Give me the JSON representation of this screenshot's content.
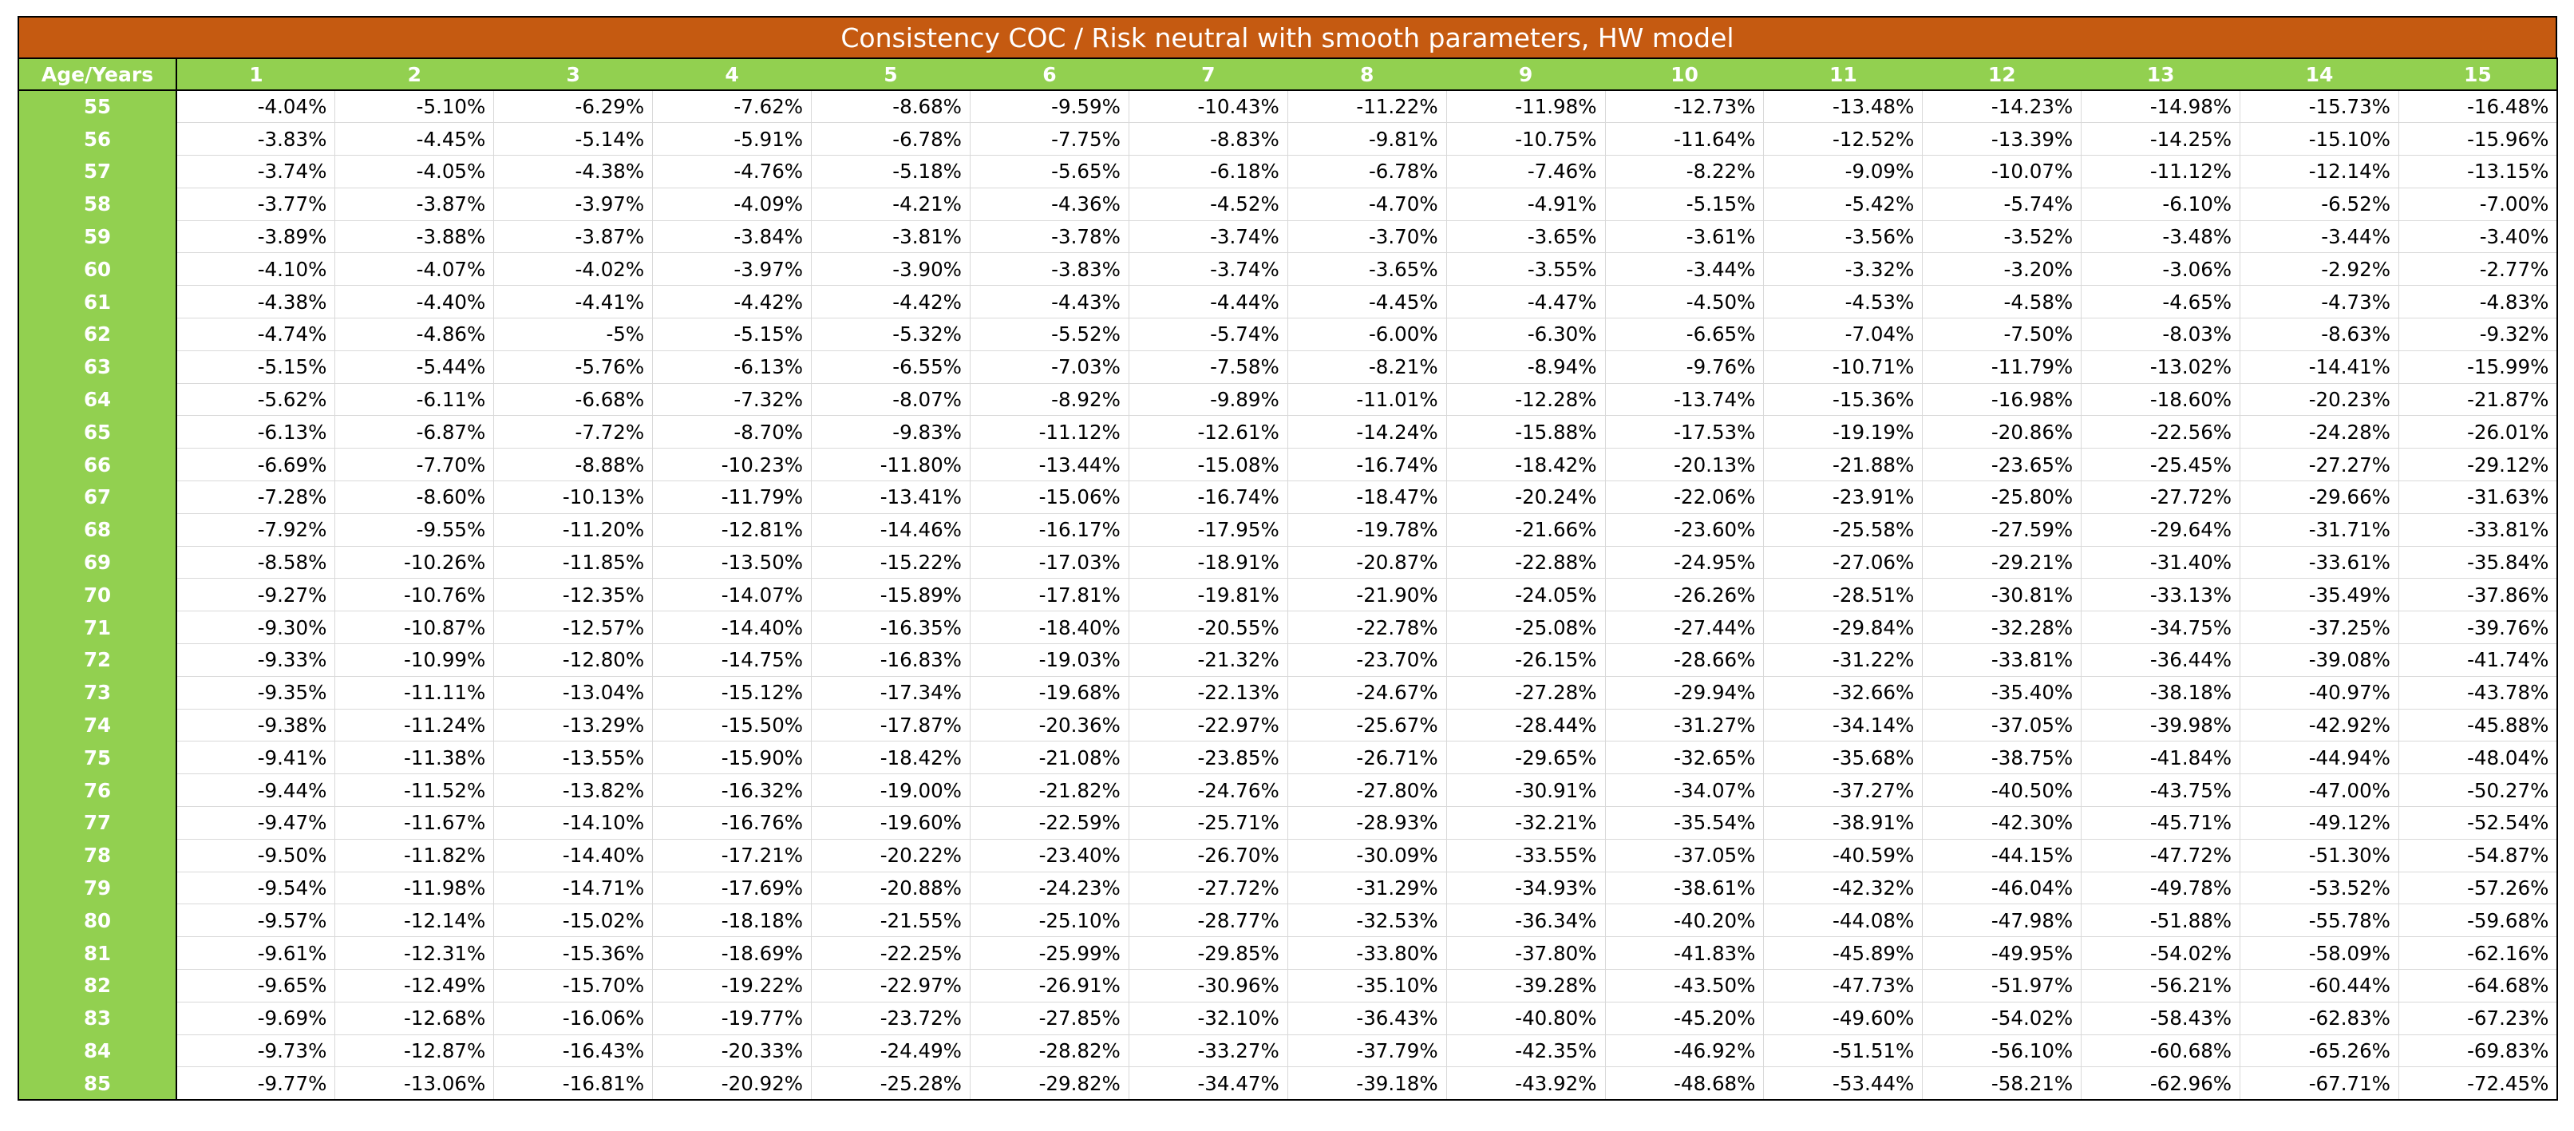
{
  "title": "Consistency COC / Risk neutral with smooth parameters, HW model",
  "corner_label": "Age/Years",
  "colors": {
    "title_bg": "#c55a11",
    "header_bg": "#92d050",
    "header_text": "#ffffff"
  },
  "years": [
    "1",
    "2",
    "3",
    "4",
    "5",
    "6",
    "7",
    "8",
    "9",
    "10",
    "11",
    "12",
    "13",
    "14",
    "15"
  ],
  "rows": [
    {
      "age": "55",
      "values": [
        "-4.04%",
        "-5.10%",
        "-6.29%",
        "-7.62%",
        "-8.68%",
        "-9.59%",
        "-10.43%",
        "-11.22%",
        "-11.98%",
        "-12.73%",
        "-13.48%",
        "-14.23%",
        "-14.98%",
        "-15.73%",
        "-16.48%"
      ]
    },
    {
      "age": "56",
      "values": [
        "-3.83%",
        "-4.45%",
        "-5.14%",
        "-5.91%",
        "-6.78%",
        "-7.75%",
        "-8.83%",
        "-9.81%",
        "-10.75%",
        "-11.64%",
        "-12.52%",
        "-13.39%",
        "-14.25%",
        "-15.10%",
        "-15.96%"
      ]
    },
    {
      "age": "57",
      "values": [
        "-3.74%",
        "-4.05%",
        "-4.38%",
        "-4.76%",
        "-5.18%",
        "-5.65%",
        "-6.18%",
        "-6.78%",
        "-7.46%",
        "-8.22%",
        "-9.09%",
        "-10.07%",
        "-11.12%",
        "-12.14%",
        "-13.15%"
      ]
    },
    {
      "age": "58",
      "values": [
        "-3.77%",
        "-3.87%",
        "-3.97%",
        "-4.09%",
        "-4.21%",
        "-4.36%",
        "-4.52%",
        "-4.70%",
        "-4.91%",
        "-5.15%",
        "-5.42%",
        "-5.74%",
        "-6.10%",
        "-6.52%",
        "-7.00%"
      ]
    },
    {
      "age": "59",
      "values": [
        "-3.89%",
        "-3.88%",
        "-3.87%",
        "-3.84%",
        "-3.81%",
        "-3.78%",
        "-3.74%",
        "-3.70%",
        "-3.65%",
        "-3.61%",
        "-3.56%",
        "-3.52%",
        "-3.48%",
        "-3.44%",
        "-3.40%"
      ]
    },
    {
      "age": "60",
      "values": [
        "-4.10%",
        "-4.07%",
        "-4.02%",
        "-3.97%",
        "-3.90%",
        "-3.83%",
        "-3.74%",
        "-3.65%",
        "-3.55%",
        "-3.44%",
        "-3.32%",
        "-3.20%",
        "-3.06%",
        "-2.92%",
        "-2.77%"
      ]
    },
    {
      "age": "61",
      "values": [
        "-4.38%",
        "-4.40%",
        "-4.41%",
        "-4.42%",
        "-4.42%",
        "-4.43%",
        "-4.44%",
        "-4.45%",
        "-4.47%",
        "-4.50%",
        "-4.53%",
        "-4.58%",
        "-4.65%",
        "-4.73%",
        "-4.83%"
      ]
    },
    {
      "age": "62",
      "values": [
        "-4.74%",
        "-4.86%",
        "-5%",
        "-5.15%",
        "-5.32%",
        "-5.52%",
        "-5.74%",
        "-6.00%",
        "-6.30%",
        "-6.65%",
        "-7.04%",
        "-7.50%",
        "-8.03%",
        "-8.63%",
        "-9.32%"
      ]
    },
    {
      "age": "63",
      "values": [
        "-5.15%",
        "-5.44%",
        "-5.76%",
        "-6.13%",
        "-6.55%",
        "-7.03%",
        "-7.58%",
        "-8.21%",
        "-8.94%",
        "-9.76%",
        "-10.71%",
        "-11.79%",
        "-13.02%",
        "-14.41%",
        "-15.99%"
      ]
    },
    {
      "age": "64",
      "values": [
        "-5.62%",
        "-6.11%",
        "-6.68%",
        "-7.32%",
        "-8.07%",
        "-8.92%",
        "-9.89%",
        "-11.01%",
        "-12.28%",
        "-13.74%",
        "-15.36%",
        "-16.98%",
        "-18.60%",
        "-20.23%",
        "-21.87%"
      ]
    },
    {
      "age": "65",
      "values": [
        "-6.13%",
        "-6.87%",
        "-7.72%",
        "-8.70%",
        "-9.83%",
        "-11.12%",
        "-12.61%",
        "-14.24%",
        "-15.88%",
        "-17.53%",
        "-19.19%",
        "-20.86%",
        "-22.56%",
        "-24.28%",
        "-26.01%"
      ]
    },
    {
      "age": "66",
      "values": [
        "-6.69%",
        "-7.70%",
        "-8.88%",
        "-10.23%",
        "-11.80%",
        "-13.44%",
        "-15.08%",
        "-16.74%",
        "-18.42%",
        "-20.13%",
        "-21.88%",
        "-23.65%",
        "-25.45%",
        "-27.27%",
        "-29.12%"
      ]
    },
    {
      "age": "67",
      "values": [
        "-7.28%",
        "-8.60%",
        "-10.13%",
        "-11.79%",
        "-13.41%",
        "-15.06%",
        "-16.74%",
        "-18.47%",
        "-20.24%",
        "-22.06%",
        "-23.91%",
        "-25.80%",
        "-27.72%",
        "-29.66%",
        "-31.63%"
      ]
    },
    {
      "age": "68",
      "values": [
        "-7.92%",
        "-9.55%",
        "-11.20%",
        "-12.81%",
        "-14.46%",
        "-16.17%",
        "-17.95%",
        "-19.78%",
        "-21.66%",
        "-23.60%",
        "-25.58%",
        "-27.59%",
        "-29.64%",
        "-31.71%",
        "-33.81%"
      ]
    },
    {
      "age": "69",
      "values": [
        "-8.58%",
        "-10.26%",
        "-11.85%",
        "-13.50%",
        "-15.22%",
        "-17.03%",
        "-18.91%",
        "-20.87%",
        "-22.88%",
        "-24.95%",
        "-27.06%",
        "-29.21%",
        "-31.40%",
        "-33.61%",
        "-35.84%"
      ]
    },
    {
      "age": "70",
      "values": [
        "-9.27%",
        "-10.76%",
        "-12.35%",
        "-14.07%",
        "-15.89%",
        "-17.81%",
        "-19.81%",
        "-21.90%",
        "-24.05%",
        "-26.26%",
        "-28.51%",
        "-30.81%",
        "-33.13%",
        "-35.49%",
        "-37.86%"
      ]
    },
    {
      "age": "71",
      "values": [
        "-9.30%",
        "-10.87%",
        "-12.57%",
        "-14.40%",
        "-16.35%",
        "-18.40%",
        "-20.55%",
        "-22.78%",
        "-25.08%",
        "-27.44%",
        "-29.84%",
        "-32.28%",
        "-34.75%",
        "-37.25%",
        "-39.76%"
      ]
    },
    {
      "age": "72",
      "values": [
        "-9.33%",
        "-10.99%",
        "-12.80%",
        "-14.75%",
        "-16.83%",
        "-19.03%",
        "-21.32%",
        "-23.70%",
        "-26.15%",
        "-28.66%",
        "-31.22%",
        "-33.81%",
        "-36.44%",
        "-39.08%",
        "-41.74%"
      ]
    },
    {
      "age": "73",
      "values": [
        "-9.35%",
        "-11.11%",
        "-13.04%",
        "-15.12%",
        "-17.34%",
        "-19.68%",
        "-22.13%",
        "-24.67%",
        "-27.28%",
        "-29.94%",
        "-32.66%",
        "-35.40%",
        "-38.18%",
        "-40.97%",
        "-43.78%"
      ]
    },
    {
      "age": "74",
      "values": [
        "-9.38%",
        "-11.24%",
        "-13.29%",
        "-15.50%",
        "-17.87%",
        "-20.36%",
        "-22.97%",
        "-25.67%",
        "-28.44%",
        "-31.27%",
        "-34.14%",
        "-37.05%",
        "-39.98%",
        "-42.92%",
        "-45.88%"
      ]
    },
    {
      "age": "75",
      "values": [
        "-9.41%",
        "-11.38%",
        "-13.55%",
        "-15.90%",
        "-18.42%",
        "-21.08%",
        "-23.85%",
        "-26.71%",
        "-29.65%",
        "-32.65%",
        "-35.68%",
        "-38.75%",
        "-41.84%",
        "-44.94%",
        "-48.04%"
      ]
    },
    {
      "age": "76",
      "values": [
        "-9.44%",
        "-11.52%",
        "-13.82%",
        "-16.32%",
        "-19.00%",
        "-21.82%",
        "-24.76%",
        "-27.80%",
        "-30.91%",
        "-34.07%",
        "-37.27%",
        "-40.50%",
        "-43.75%",
        "-47.00%",
        "-50.27%"
      ]
    },
    {
      "age": "77",
      "values": [
        "-9.47%",
        "-11.67%",
        "-14.10%",
        "-16.76%",
        "-19.60%",
        "-22.59%",
        "-25.71%",
        "-28.93%",
        "-32.21%",
        "-35.54%",
        "-38.91%",
        "-42.30%",
        "-45.71%",
        "-49.12%",
        "-52.54%"
      ]
    },
    {
      "age": "78",
      "values": [
        "-9.50%",
        "-11.82%",
        "-14.40%",
        "-17.21%",
        "-20.22%",
        "-23.40%",
        "-26.70%",
        "-30.09%",
        "-33.55%",
        "-37.05%",
        "-40.59%",
        "-44.15%",
        "-47.72%",
        "-51.30%",
        "-54.87%"
      ]
    },
    {
      "age": "79",
      "values": [
        "-9.54%",
        "-11.98%",
        "-14.71%",
        "-17.69%",
        "-20.88%",
        "-24.23%",
        "-27.72%",
        "-31.29%",
        "-34.93%",
        "-38.61%",
        "-42.32%",
        "-46.04%",
        "-49.78%",
        "-53.52%",
        "-57.26%"
      ]
    },
    {
      "age": "80",
      "values": [
        "-9.57%",
        "-12.14%",
        "-15.02%",
        "-18.18%",
        "-21.55%",
        "-25.10%",
        "-28.77%",
        "-32.53%",
        "-36.34%",
        "-40.20%",
        "-44.08%",
        "-47.98%",
        "-51.88%",
        "-55.78%",
        "-59.68%"
      ]
    },
    {
      "age": "81",
      "values": [
        "-9.61%",
        "-12.31%",
        "-15.36%",
        "-18.69%",
        "-22.25%",
        "-25.99%",
        "-29.85%",
        "-33.80%",
        "-37.80%",
        "-41.83%",
        "-45.89%",
        "-49.95%",
        "-54.02%",
        "-58.09%",
        "-62.16%"
      ]
    },
    {
      "age": "82",
      "values": [
        "-9.65%",
        "-12.49%",
        "-15.70%",
        "-19.22%",
        "-22.97%",
        "-26.91%",
        "-30.96%",
        "-35.10%",
        "-39.28%",
        "-43.50%",
        "-47.73%",
        "-51.97%",
        "-56.21%",
        "-60.44%",
        "-64.68%"
      ]
    },
    {
      "age": "83",
      "values": [
        "-9.69%",
        "-12.68%",
        "-16.06%",
        "-19.77%",
        "-23.72%",
        "-27.85%",
        "-32.10%",
        "-36.43%",
        "-40.80%",
        "-45.20%",
        "-49.60%",
        "-54.02%",
        "-58.43%",
        "-62.83%",
        "-67.23%"
      ]
    },
    {
      "age": "84",
      "values": [
        "-9.73%",
        "-12.87%",
        "-16.43%",
        "-20.33%",
        "-24.49%",
        "-28.82%",
        "-33.27%",
        "-37.79%",
        "-42.35%",
        "-46.92%",
        "-51.51%",
        "-56.10%",
        "-60.68%",
        "-65.26%",
        "-69.83%"
      ]
    },
    {
      "age": "85",
      "values": [
        "-9.77%",
        "-13.06%",
        "-16.81%",
        "-20.92%",
        "-25.28%",
        "-29.82%",
        "-34.47%",
        "-39.18%",
        "-43.92%",
        "-48.68%",
        "-53.44%",
        "-58.21%",
        "-62.96%",
        "-67.71%",
        "-72.45%"
      ]
    }
  ]
}
